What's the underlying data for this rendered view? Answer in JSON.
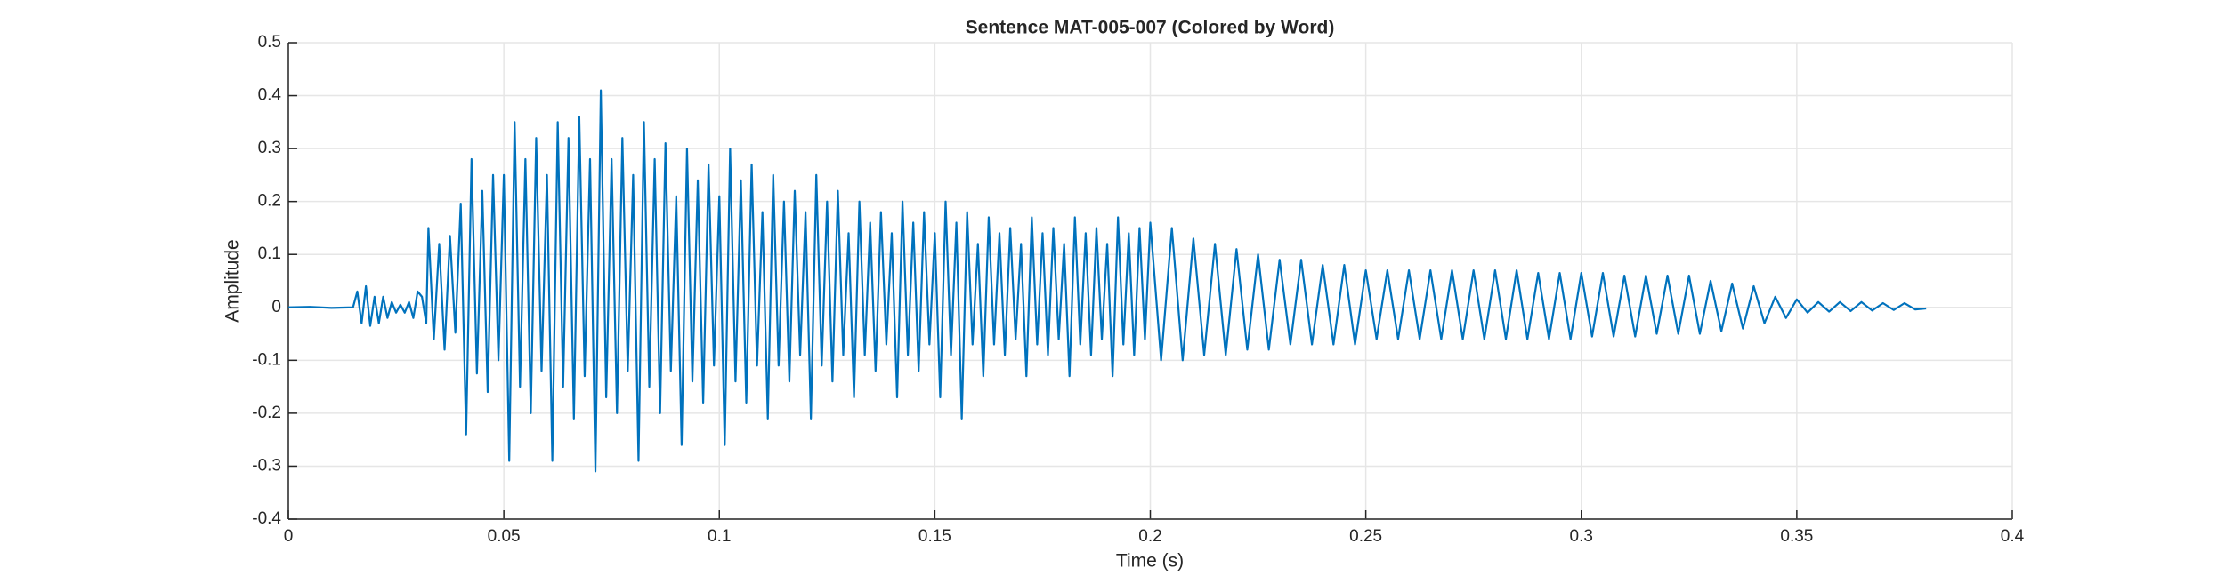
{
  "chart_data": {
    "type": "line",
    "title": "Sentence MAT-005-007 (Colored by Word)",
    "xlabel": "Time (s)",
    "ylabel": "Amplitude",
    "color": "#0072bd",
    "grid": true,
    "xlim": [
      0,
      0.4
    ],
    "xticks": [
      0,
      0.05,
      0.1,
      0.15,
      0.2,
      0.25,
      0.3,
      0.35,
      0.4
    ],
    "ylim": [
      -0.4,
      0.5
    ],
    "yticks": [
      -0.4,
      -0.3,
      -0.2,
      -0.1,
      0,
      0.1,
      0.2,
      0.3,
      0.4,
      0.5
    ],
    "x": [
      0,
      0.005,
      0.01,
      0.015,
      0.016,
      0.017,
      0.018,
      0.019,
      0.02,
      0.021,
      0.022,
      0.023,
      0.024,
      0.025,
      0.026,
      0.027,
      0.028,
      0.029,
      0.03,
      0.031,
      0.032,
      0.0325,
      0.03375,
      0.035,
      0.03625,
      0.0375,
      0.03875,
      0.04,
      0.04125,
      0.0425,
      0.04375,
      0.045,
      0.04625,
      0.0475,
      0.04875,
      0.05,
      0.05125,
      0.0525,
      0.05375,
      0.055,
      0.05625,
      0.0575,
      0.05875,
      0.06,
      0.06125,
      0.0625,
      0.06375,
      0.065,
      0.06625,
      0.0675,
      0.06875,
      0.07,
      0.07125,
      0.0725,
      0.07375,
      0.075,
      0.07625,
      0.0775,
      0.07875,
      0.08,
      0.08125,
      0.0825,
      0.08375,
      0.085,
      0.08625,
      0.0875,
      0.08875,
      0.09,
      0.09125,
      0.0925,
      0.09375,
      0.095,
      0.09625,
      0.0975,
      0.09875,
      0.1,
      0.10125,
      0.1025,
      0.10375,
      0.105,
      0.10625,
      0.1075,
      0.10875,
      0.11,
      0.11125,
      0.1125,
      0.11375,
      0.115,
      0.11625,
      0.1175,
      0.11875,
      0.12,
      0.12125,
      0.1225,
      0.12375,
      0.125,
      0.12625,
      0.1275,
      0.12875,
      0.13,
      0.13125,
      0.1325,
      0.13375,
      0.135,
      0.13625,
      0.1375,
      0.13875,
      0.14,
      0.14125,
      0.1425,
      0.14375,
      0.145,
      0.14625,
      0.1475,
      0.14875,
      0.15,
      0.15125,
      0.1525,
      0.15375,
      0.155,
      0.15625,
      0.1575,
      0.15875,
      0.16,
      0.16125,
      0.1625,
      0.16375,
      0.165,
      0.16625,
      0.1675,
      0.16875,
      0.17,
      0.17125,
      0.1725,
      0.17375,
      0.175,
      0.17625,
      0.1775,
      0.17875,
      0.18,
      0.18125,
      0.1825,
      0.18375,
      0.185,
      0.18625,
      0.1875,
      0.18875,
      0.19,
      0.19125,
      0.1925,
      0.19375,
      0.195,
      0.19625,
      0.1975,
      0.19875,
      0.2,
      0.2025,
      0.205,
      0.2075,
      0.21,
      0.2125,
      0.215,
      0.2175,
      0.22,
      0.2225,
      0.225,
      0.2275,
      0.23,
      0.2325,
      0.235,
      0.2375,
      0.24,
      0.2425,
      0.245,
      0.2475,
      0.25,
      0.2525,
      0.255,
      0.2575,
      0.26,
      0.2625,
      0.265,
      0.2675,
      0.27,
      0.2725,
      0.275,
      0.2775,
      0.28,
      0.2825,
      0.285,
      0.2875,
      0.29,
      0.2925,
      0.295,
      0.2975,
      0.3,
      0.3025,
      0.305,
      0.3075,
      0.31,
      0.3125,
      0.315,
      0.3175,
      0.32,
      0.3225,
      0.325,
      0.3275,
      0.33,
      0.3325,
      0.335,
      0.3375,
      0.34,
      0.3425,
      0.345,
      0.3475,
      0.35,
      0.3525,
      0.355,
      0.3575,
      0.36,
      0.3625,
      0.365,
      0.3675,
      0.37,
      0.3725,
      0.375,
      0.3775,
      0.38
    ],
    "values": [
      0,
      0.001,
      -0.001,
      0,
      0.03,
      -0.03,
      0.04,
      -0.035,
      0.02,
      -0.03,
      0.02,
      -0.02,
      0.01,
      -0.01,
      0.005,
      -0.01,
      0.01,
      -0.02,
      0.03,
      0.02,
      -0.03,
      0.15,
      -0.06,
      0.12,
      -0.08,
      0.135,
      -0.048,
      0.196,
      -0.24,
      0.28,
      -0.125,
      0.22,
      -0.16,
      0.25,
      -0.1,
      0.25,
      -0.29,
      0.35,
      -0.15,
      0.28,
      -0.2,
      0.32,
      -0.12,
      0.25,
      -0.29,
      0.35,
      -0.15,
      0.32,
      -0.21,
      0.36,
      -0.13,
      0.28,
      -0.31,
      0.41,
      -0.17,
      0.28,
      -0.2,
      0.32,
      -0.12,
      0.25,
      -0.29,
      0.35,
      -0.15,
      0.28,
      -0.2,
      0.31,
      -0.12,
      0.21,
      -0.26,
      0.3,
      -0.14,
      0.24,
      -0.18,
      0.27,
      -0.11,
      0.21,
      -0.26,
      0.3,
      -0.14,
      0.24,
      -0.18,
      0.27,
      -0.11,
      0.18,
      -0.21,
      0.25,
      -0.11,
      0.2,
      -0.14,
      0.22,
      -0.09,
      0.18,
      -0.21,
      0.25,
      -0.11,
      0.2,
      -0.14,
      0.22,
      -0.09,
      0.14,
      -0.17,
      0.2,
      -0.09,
      0.16,
      -0.12,
      0.18,
      -0.07,
      0.14,
      -0.17,
      0.2,
      -0.09,
      0.16,
      -0.12,
      0.18,
      -0.07,
      0.14,
      -0.17,
      0.2,
      -0.09,
      0.16,
      -0.21,
      0.18,
      -0.07,
      0.12,
      -0.13,
      0.17,
      -0.07,
      0.14,
      -0.09,
      0.15,
      -0.06,
      0.12,
      -0.13,
      0.17,
      -0.07,
      0.14,
      -0.09,
      0.15,
      -0.06,
      0.12,
      -0.13,
      0.17,
      -0.07,
      0.14,
      -0.09,
      0.15,
      -0.06,
      0.12,
      -0.13,
      0.17,
      -0.07,
      0.14,
      -0.09,
      0.15,
      -0.06,
      0.16,
      -0.1,
      0.15,
      -0.1,
      0.13,
      -0.09,
      0.12,
      -0.09,
      0.11,
      -0.08,
      0.1,
      -0.08,
      0.09,
      -0.07,
      0.09,
      -0.07,
      0.08,
      -0.07,
      0.08,
      -0.07,
      0.07,
      -0.06,
      0.07,
      -0.06,
      0.07,
      -0.06,
      0.07,
      -0.06,
      0.07,
      -0.06,
      0.07,
      -0.06,
      0.07,
      -0.06,
      0.07,
      -0.06,
      0.065,
      -0.06,
      0.065,
      -0.06,
      0.065,
      -0.055,
      0.065,
      -0.055,
      0.06,
      -0.055,
      0.06,
      -0.05,
      0.06,
      -0.05,
      0.06,
      -0.05,
      0.05,
      -0.045,
      0.045,
      -0.04,
      0.04,
      -0.03,
      0.02,
      -0.02,
      0.015,
      -0.01,
      0.01,
      -0.008,
      0.01,
      -0.007,
      0.01,
      -0.006,
      0.008,
      -0.005,
      0.008,
      -0.004,
      -0.002
    ]
  }
}
